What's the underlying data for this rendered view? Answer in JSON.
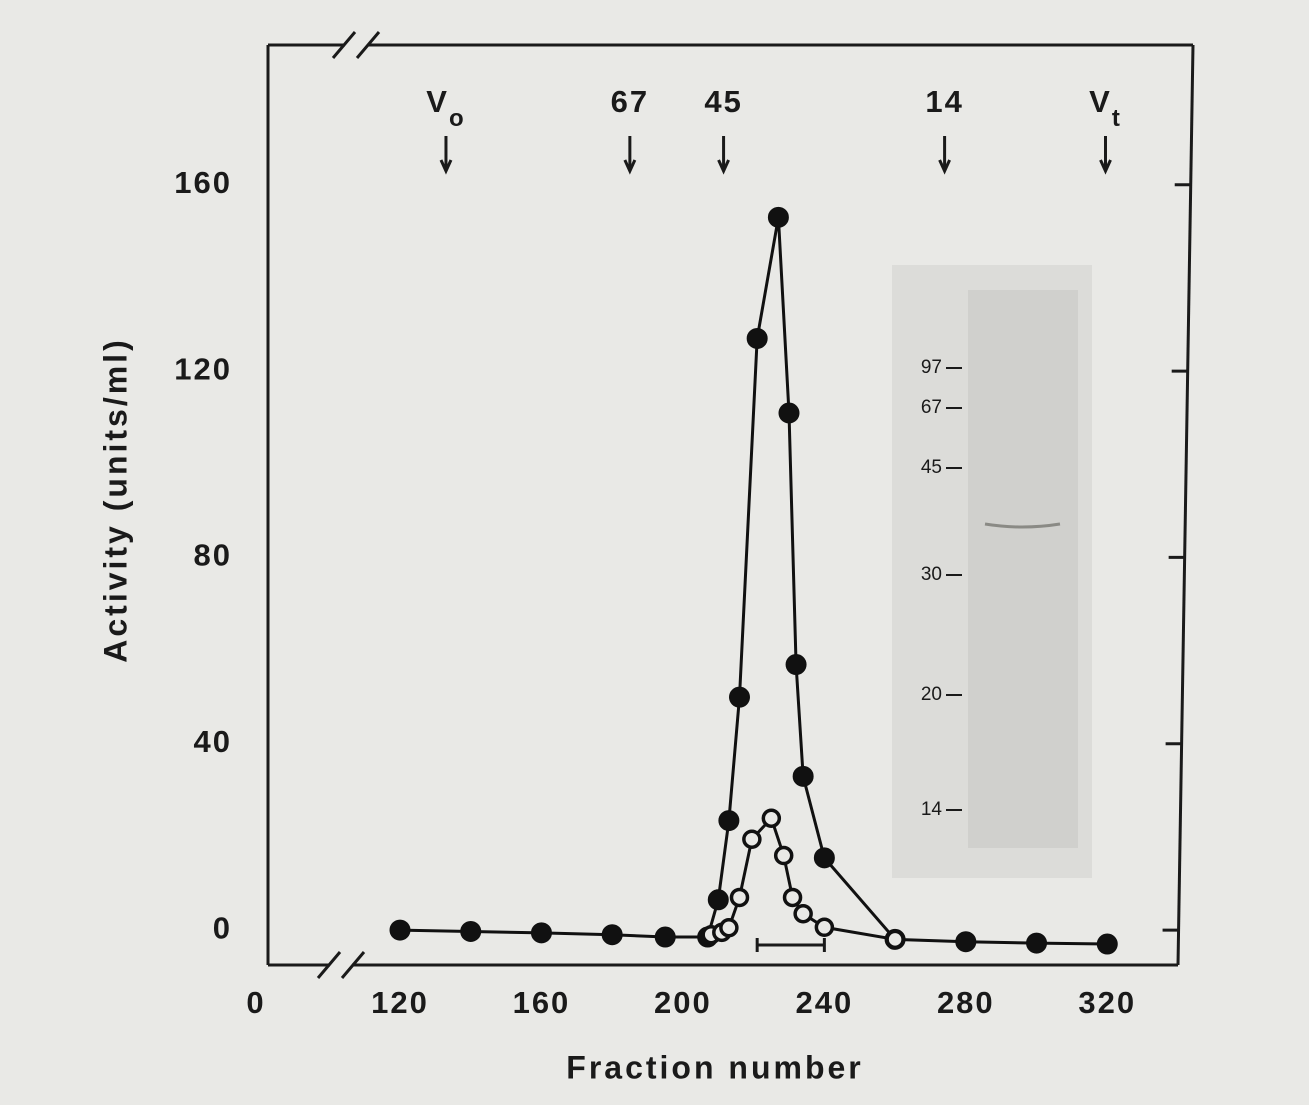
{
  "chart_data": {
    "type": "line",
    "xlabel": "Fraction number",
    "ylabel": "Activity (units/ml)",
    "xlim": [
      0,
      340
    ],
    "xticks": [
      0,
      120,
      160,
      200,
      240,
      280,
      320
    ],
    "x_axis_break": true,
    "ylim": [
      -7.5,
      190
    ],
    "yticks": [
      0,
      40,
      80,
      120,
      160
    ],
    "series": [
      {
        "marker": "filled",
        "color": "#111111",
        "x": [
          120,
          140,
          160,
          180,
          195,
          207,
          210,
          213,
          216,
          221,
          227,
          230,
          232,
          234,
          240,
          260,
          280,
          300,
          320
        ],
        "values": [
          0,
          -0.3,
          -0.6,
          -1,
          -1.5,
          -1.5,
          6.5,
          23.5,
          50,
          127,
          153,
          111,
          57,
          33,
          15.5,
          -2,
          -2.5,
          -2.8,
          -3
        ]
      },
      {
        "marker": "open",
        "color": "#111111",
        "x": [
          208,
          211,
          213,
          216,
          219.5,
          225,
          228.5,
          231,
          234,
          240,
          260
        ],
        "values": [
          -1,
          -0.5,
          0.5,
          7,
          19.5,
          24,
          16,
          7,
          3.5,
          0.6,
          -2
        ]
      }
    ],
    "markers": [
      {
        "label": "V",
        "subscript": "o",
        "x": 133
      },
      {
        "label": "67",
        "x": 185
      },
      {
        "label": "45",
        "x": 211.5
      },
      {
        "label": "14",
        "x": 274
      },
      {
        "label": "V",
        "subscript": "t",
        "x": 319.5
      }
    ],
    "pooled_fractions": [
      221,
      240
    ],
    "inset": {
      "gel_markers": [
        97,
        67,
        45,
        30,
        20,
        14
      ]
    }
  }
}
